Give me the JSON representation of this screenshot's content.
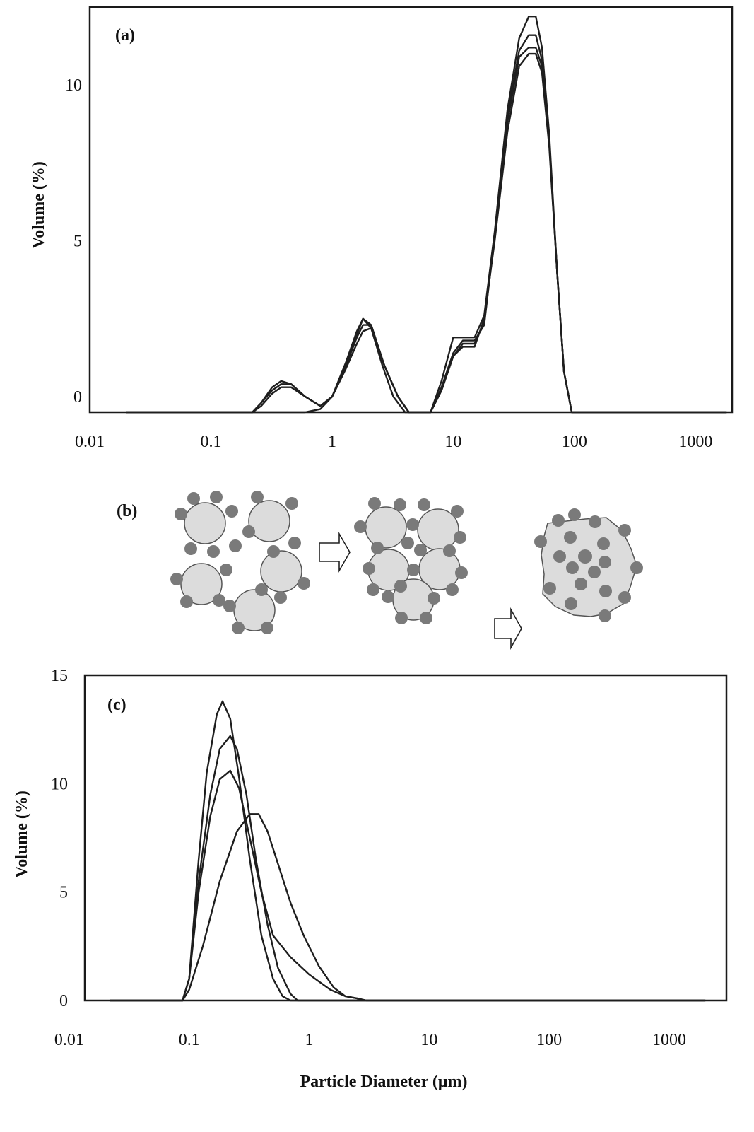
{
  "chart_data": [
    {
      "panel": "(a)",
      "type": "line",
      "x_scale": "log",
      "xlim": [
        0.01,
        2000
      ],
      "ylim": [
        -0.5,
        12.5
      ],
      "xticks": [
        "0.01",
        "0.1",
        "1",
        "10",
        "100",
        "1000"
      ],
      "yticks": [
        "0",
        "5",
        "10"
      ],
      "ylabel": "Volume (%)",
      "xlabel": "",
      "series": [
        {
          "x": [
            0.02,
            0.22,
            0.26,
            0.32,
            0.38,
            0.46,
            0.6,
            0.8,
            1.0,
            1.3,
            1.6,
            1.8,
            2.1,
            2.7,
            3.5,
            4.3,
            5.5,
            6.5,
            8.0,
            10,
            12,
            15,
            18,
            22,
            28,
            35,
            42,
            48,
            54,
            62,
            72,
            82,
            95,
            110,
            1800
          ],
          "y": [
            -0.5,
            -0.5,
            -0.2,
            0.3,
            0.5,
            0.4,
            0.0,
            -0.3,
            0.0,
            1.1,
            2.1,
            2.5,
            2.3,
            1.0,
            0.0,
            -0.5,
            -0.5,
            -0.5,
            0.2,
            1.3,
            1.6,
            1.6,
            2.5,
            5.0,
            8.5,
            10.6,
            11.0,
            11.0,
            10.4,
            8.0,
            4.0,
            0.8,
            -0.5,
            -0.5,
            -0.5
          ]
        },
        {
          "x": [
            0.02,
            0.22,
            0.26,
            0.32,
            0.38,
            0.46,
            0.6,
            0.8,
            1.0,
            1.3,
            1.6,
            1.8,
            2.1,
            2.7,
            3.5,
            4.3,
            5.5,
            6.5,
            8.0,
            10,
            12,
            15,
            18,
            22,
            28,
            35,
            42,
            48,
            54,
            62,
            72,
            82,
            95,
            110,
            1800
          ],
          "y": [
            -0.5,
            -0.5,
            -0.3,
            0.1,
            0.3,
            0.3,
            0.0,
            -0.3,
            0.0,
            0.9,
            1.7,
            2.1,
            2.2,
            1.0,
            0.0,
            -0.5,
            -0.5,
            -0.5,
            0.3,
            1.4,
            1.8,
            1.8,
            2.3,
            5.2,
            9.0,
            11.1,
            11.6,
            11.6,
            10.8,
            8.2,
            4.0,
            0.8,
            -0.5,
            -0.5,
            -0.5
          ]
        },
        {
          "x": [
            0.02,
            0.22,
            0.26,
            0.32,
            0.38,
            0.46,
            0.6,
            0.8,
            1.0,
            1.3,
            1.6,
            1.8,
            2.1,
            2.7,
            3.5,
            4.3,
            5.5,
            6.5,
            8.0,
            10,
            12,
            15,
            18,
            22,
            28,
            35,
            42,
            48,
            54,
            62,
            72,
            82,
            95,
            110,
            1800
          ],
          "y": [
            -0.5,
            -0.5,
            -0.2,
            0.2,
            0.4,
            0.4,
            0.0,
            -0.3,
            0.0,
            1.0,
            1.9,
            2.3,
            2.3,
            1.0,
            0.0,
            -0.5,
            -0.5,
            -0.5,
            0.2,
            1.3,
            1.7,
            1.7,
            2.4,
            5.1,
            8.8,
            10.9,
            11.2,
            11.2,
            10.6,
            8.1,
            4.0,
            0.8,
            -0.5,
            -0.5,
            -0.5
          ]
        },
        {
          "x": [
            0.02,
            0.6,
            0.8,
            1.0,
            1.3,
            1.6,
            1.8,
            2.1,
            2.6,
            3.2,
            4.0,
            5.5,
            6.5,
            8.0,
            10,
            12,
            15,
            18,
            22,
            28,
            35,
            42,
            48,
            54,
            62,
            72,
            82,
            95,
            110,
            1800
          ],
          "y": [
            -0.5,
            -0.5,
            -0.4,
            0.0,
            1.0,
            2.0,
            2.5,
            2.2,
            1.0,
            0.0,
            -0.5,
            -0.5,
            -0.5,
            0.5,
            1.9,
            1.9,
            1.9,
            2.6,
            5.3,
            9.2,
            11.5,
            12.2,
            12.2,
            11.2,
            8.4,
            4.0,
            0.8,
            -0.5,
            -0.5,
            -0.5
          ]
        }
      ]
    },
    {
      "panel": "(c)",
      "type": "line",
      "x_scale": "log",
      "xlim": [
        0.0135,
        3000
      ],
      "ylim": [
        0,
        15
      ],
      "xticks": [
        "0.01",
        "0.1",
        "1",
        "10",
        "100",
        "1000"
      ],
      "yticks": [
        "0",
        "5",
        "10",
        "15"
      ],
      "ylabel": "Volume (%)",
      "xlabel": "Particle Diameter (μm)",
      "series": [
        {
          "x": [
            0.022,
            0.088,
            0.1,
            0.12,
            0.14,
            0.17,
            0.19,
            0.22,
            0.26,
            0.32,
            0.4,
            0.5,
            0.6,
            0.7,
            3.0,
            2000
          ],
          "y": [
            0,
            0,
            1.0,
            6.5,
            10.5,
            13.2,
            13.8,
            13.0,
            10.3,
            6.5,
            3.0,
            1.0,
            0.2,
            0,
            0,
            0
          ]
        },
        {
          "x": [
            0.022,
            0.088,
            0.1,
            0.12,
            0.15,
            0.18,
            0.22,
            0.25,
            0.3,
            0.36,
            0.45,
            0.55,
            0.7,
            0.8,
            3.0,
            2000
          ],
          "y": [
            0,
            0,
            1.0,
            5.5,
            9.5,
            11.6,
            12.2,
            11.6,
            9.5,
            6.5,
            3.5,
            1.5,
            0.3,
            0,
            0,
            0
          ]
        },
        {
          "x": [
            0.022,
            0.088,
            0.1,
            0.12,
            0.15,
            0.18,
            0.22,
            0.26,
            0.32,
            0.4,
            0.5,
            0.7,
            1.0,
            1.5,
            2.0,
            2.5,
            3.0,
            2000
          ],
          "y": [
            0,
            0,
            1.0,
            5.0,
            8.5,
            10.2,
            10.6,
            9.8,
            7.5,
            5.0,
            3.0,
            2.0,
            1.2,
            0.5,
            0.2,
            0.1,
            0,
            0
          ]
        },
        {
          "x": [
            0.022,
            0.088,
            0.1,
            0.13,
            0.18,
            0.25,
            0.32,
            0.38,
            0.45,
            0.55,
            0.7,
            0.9,
            1.2,
            1.6,
            2.0,
            2.5,
            3.0,
            2000
          ],
          "y": [
            0,
            0,
            0.5,
            2.5,
            5.5,
            7.8,
            8.6,
            8.6,
            7.8,
            6.3,
            4.5,
            3.0,
            1.6,
            0.6,
            0.2,
            0.1,
            0,
            0
          ]
        }
      ]
    }
  ],
  "diagram_b": {
    "label": "(b)"
  }
}
